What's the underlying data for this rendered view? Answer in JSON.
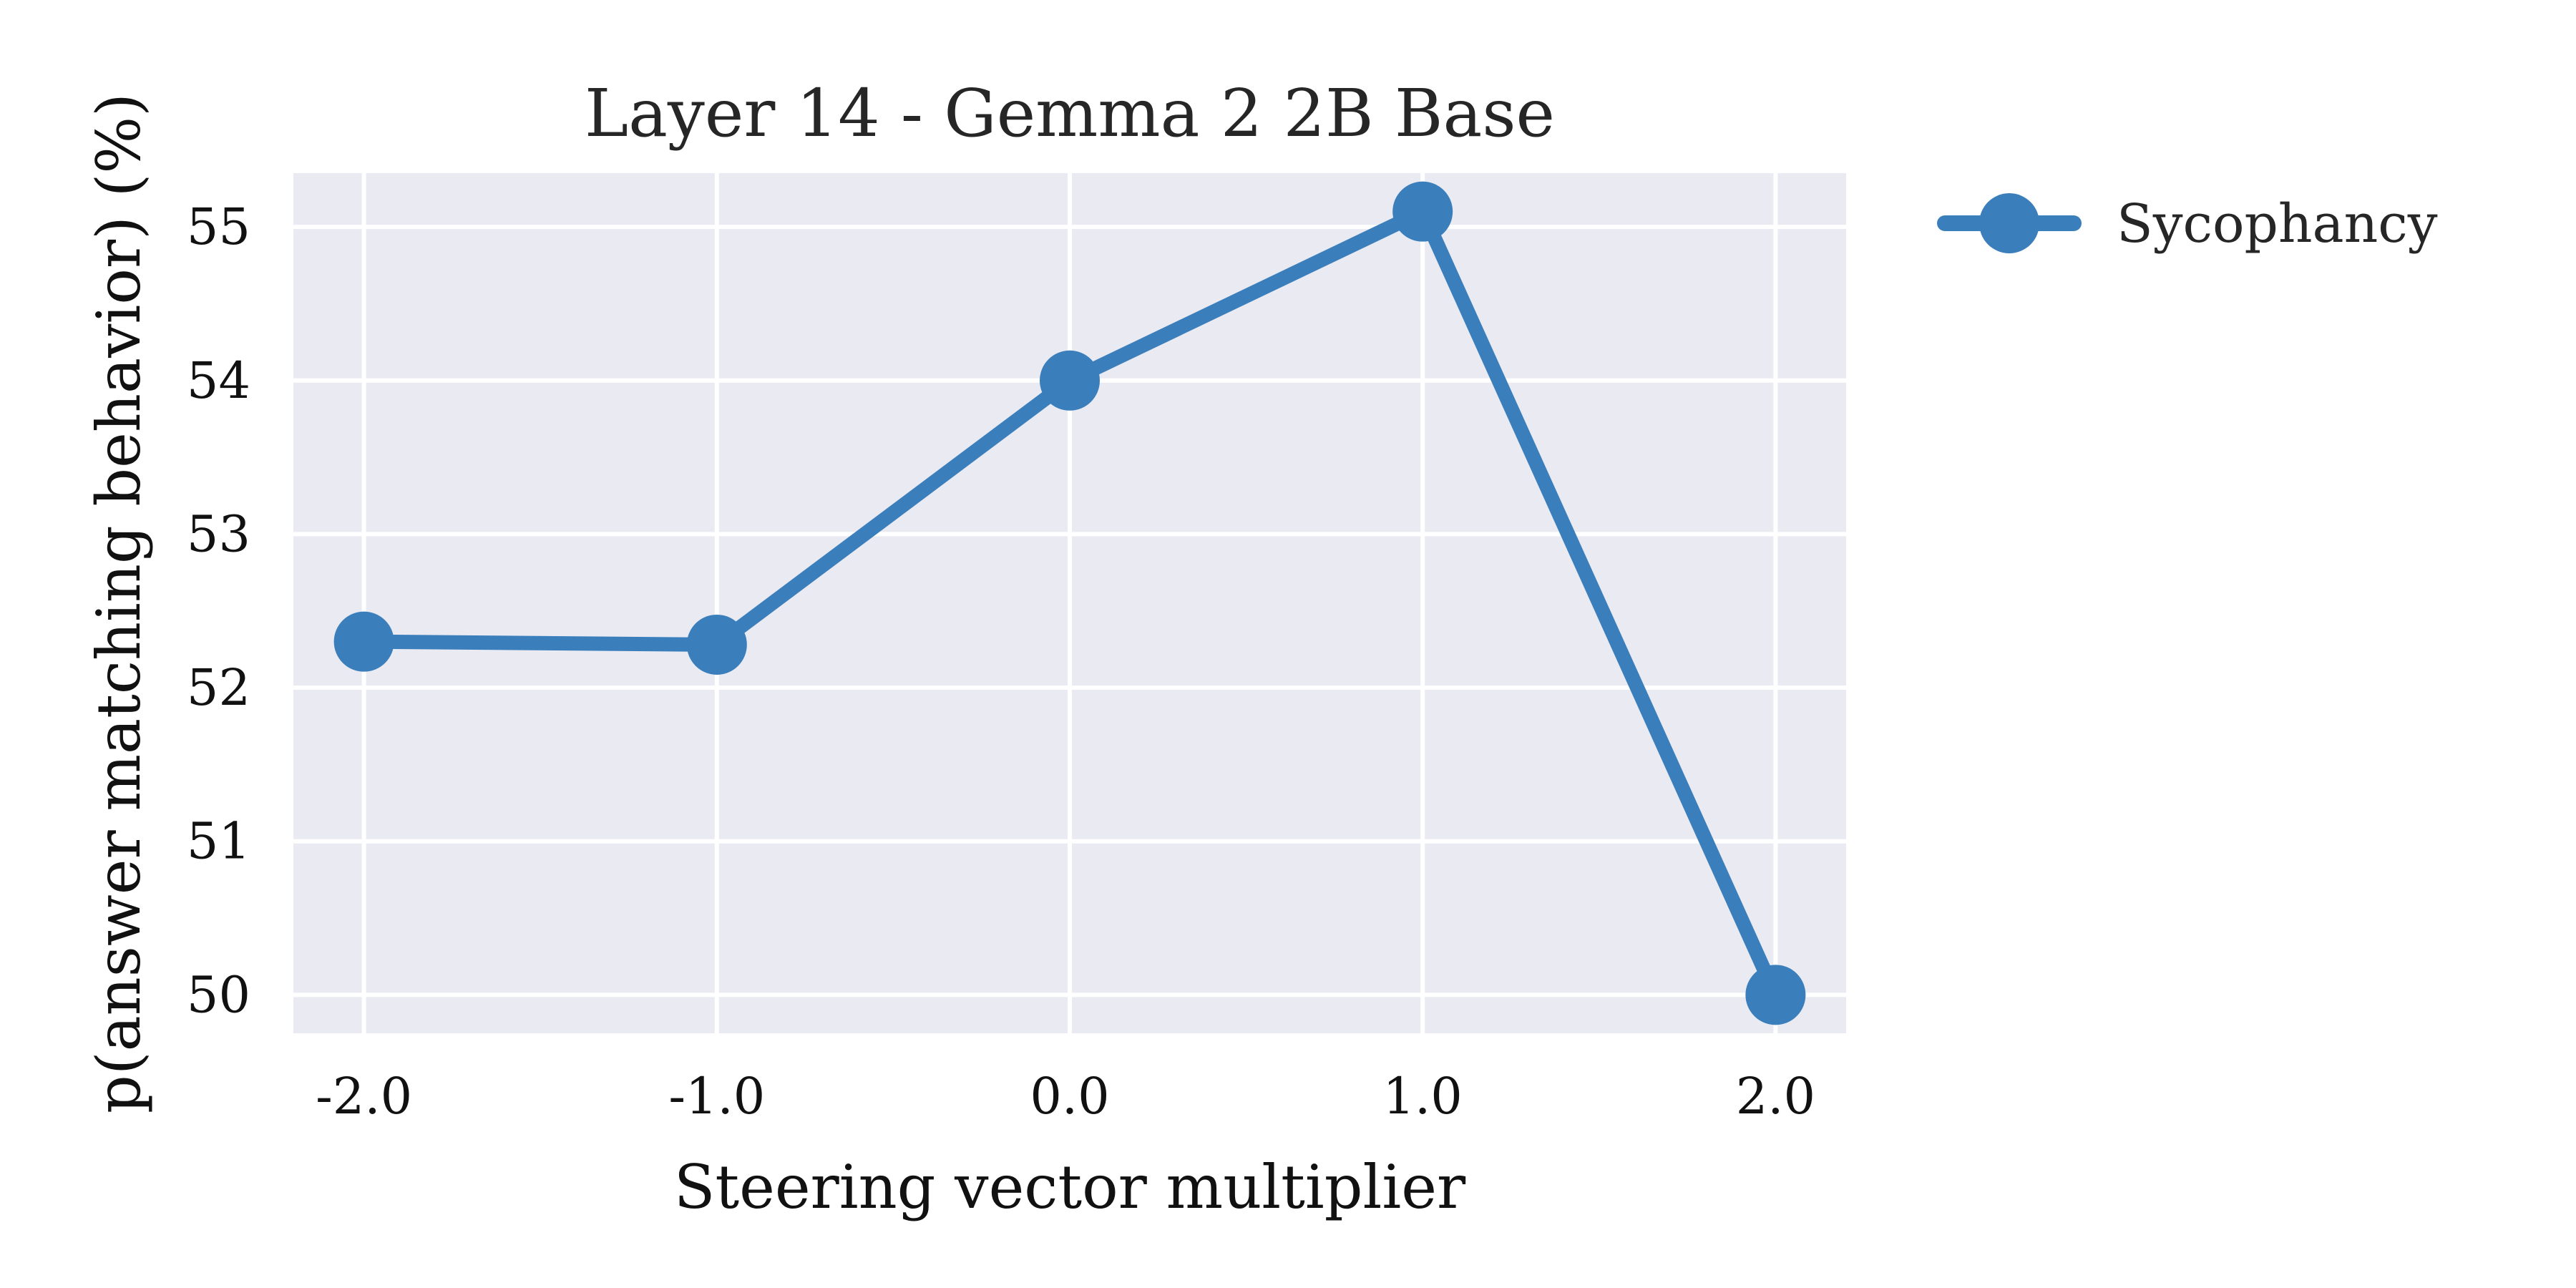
{
  "chart_data": {
    "type": "line",
    "title": "Layer 14 - Gemma 2 2B Base",
    "xlabel": "Steering vector multiplier",
    "ylabel": "p(answer matching behavior) (%)",
    "x": [
      -2.0,
      -1.0,
      0.0,
      1.0,
      2.0
    ],
    "x_tick_labels": [
      "-2.0",
      "-1.0",
      "0.0",
      "1.0",
      "2.0"
    ],
    "y_ticks": [
      50,
      51,
      52,
      53,
      54,
      55
    ],
    "y_tick_labels": [
      "50",
      "51",
      "52",
      "53",
      "54",
      "55"
    ],
    "xlim": [
      -2.2,
      2.2
    ],
    "ylim": [
      49.75,
      55.35
    ],
    "grid": true,
    "legend_position": "outside-top-right",
    "series": [
      {
        "name": "Sycophancy",
        "color": "#3a7ebc",
        "values": [
          52.3,
          52.28,
          54.0,
          55.1,
          50.0
        ]
      }
    ],
    "colors": {
      "plot_background": "#eaeaf2",
      "grid": "#ffffff"
    }
  }
}
